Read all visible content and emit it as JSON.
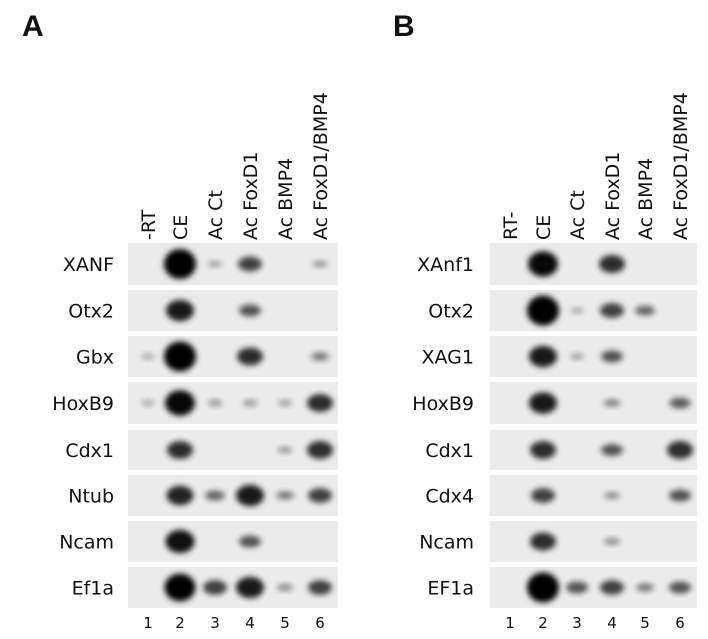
{
  "panels": [
    {
      "label": "A",
      "lanes": [
        "-RT",
        "CE",
        "Ac Ct",
        "Ac FoxD1",
        "Ac BMP4",
        "Ac FoxD1/BMP4"
      ],
      "genes": [
        "XANF",
        "Otx2",
        "Gbx",
        "HoxB9",
        "Cdx1",
        "Ntub",
        "Ncam",
        "Ef1a"
      ],
      "lane_numbers": [
        1,
        2,
        3,
        4,
        5,
        6
      ]
    },
    {
      "label": "B",
      "lanes": [
        "RT-",
        "CE",
        "Ac Ct",
        "Ac FoxD1",
        "Ac BMP4",
        "Ac FoxD1/BMP4"
      ],
      "genes": [
        "XAnf1",
        "Otx2",
        "XAG1",
        "HoxB9",
        "Cdx1",
        "Cdx4",
        "Ncam",
        "EF1a"
      ],
      "lane_numbers": [
        1,
        2,
        3,
        4,
        5,
        6
      ]
    }
  ]
}
